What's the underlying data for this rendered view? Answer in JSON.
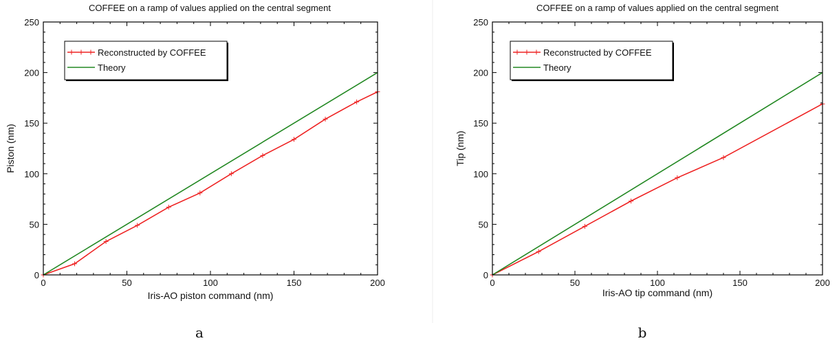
{
  "chart_data": [
    {
      "type": "line",
      "title": "COFFEE on a ramp of values applied on the central segment",
      "xlabel": "Iris-AO piston command (nm)",
      "ylabel": "Piston (nm)",
      "xlim": [
        0,
        200
      ],
      "ylim": [
        0,
        250
      ],
      "xticks": [
        0,
        50,
        100,
        150,
        200
      ],
      "yticks": [
        0,
        50,
        100,
        150,
        200,
        250
      ],
      "legend_position": "top-left",
      "caption": "a",
      "series": [
        {
          "name": "Reconstructed by COFFEE",
          "color": "#ee2222",
          "markers": true,
          "x": [
            0,
            18.75,
            37.5,
            56.25,
            75,
            93.75,
            112.5,
            131.25,
            150,
            168.75,
            187.5,
            200
          ],
          "y": [
            0,
            11,
            33,
            49,
            67,
            81,
            100,
            118,
            134,
            154,
            171,
            181
          ]
        },
        {
          "name": "Theory",
          "color": "#228822",
          "markers": false,
          "x": [
            0,
            200
          ],
          "y": [
            0,
            200
          ]
        }
      ]
    },
    {
      "type": "line",
      "title": "COFFEE on a ramp of values applied on the central segment",
      "xlabel": "Iris-AO tip command (nm)",
      "ylabel": "Tip (nm)",
      "xlim": [
        0,
        200
      ],
      "ylim": [
        0,
        250
      ],
      "xticks": [
        0,
        50,
        100,
        150,
        200
      ],
      "yticks": [
        0,
        50,
        100,
        150,
        200,
        250
      ],
      "legend_position": "top-left",
      "caption": "b",
      "series": [
        {
          "name": "Reconstructed by COFFEE",
          "color": "#ee2222",
          "markers": true,
          "x": [
            0,
            28,
            56,
            84,
            112,
            140,
            200
          ],
          "y": [
            0,
            23,
            48,
            73,
            96,
            116,
            169
          ]
        },
        {
          "name": "Theory",
          "color": "#228822",
          "markers": false,
          "x": [
            0,
            200
          ],
          "y": [
            0,
            200
          ]
        }
      ]
    }
  ]
}
